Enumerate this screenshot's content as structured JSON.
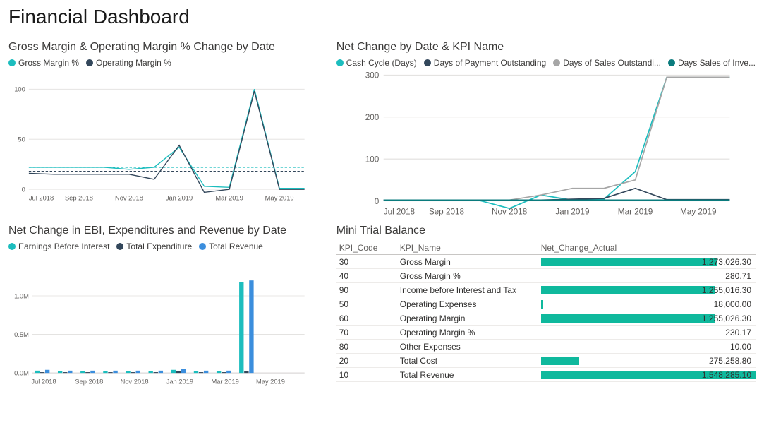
{
  "page_title": "Financial Dashboard",
  "colors": {
    "teal": "#1cbdbe",
    "navy": "#33475b",
    "blue": "#3b8edd",
    "gray": "#a6a6a6",
    "darkteal": "#0a7b7d",
    "grid": "#e1dfdd",
    "axis": "#c8c6c4",
    "barfill": "#0fb99d"
  },
  "chart1": {
    "title": "Gross Margin & Operating Margin % Change by Date",
    "legend": [
      {
        "label": "Gross Margin %",
        "color": "#1cbdbe"
      },
      {
        "label": "Operating Margin %",
        "color": "#33475b"
      }
    ],
    "ylim": [
      0,
      100
    ],
    "yticks": [
      0,
      50,
      100
    ],
    "xlabels": [
      "Jul 2018",
      "Sep 2018",
      "Nov 2018",
      "Jan 2019",
      "Mar 2019",
      "May 2019"
    ],
    "series": [
      {
        "color": "#1cbdbe",
        "values": [
          22,
          22,
          22,
          22,
          20,
          22,
          42,
          3,
          2,
          100,
          1,
          1
        ]
      },
      {
        "color": "#33475b",
        "values": [
          16,
          15,
          15,
          15,
          15,
          10,
          44,
          -3,
          0,
          98,
          0,
          0
        ]
      }
    ],
    "dash_lines": [
      {
        "color": "#1cbdbe",
        "y": 22
      },
      {
        "color": "#33475b",
        "y": 18
      }
    ]
  },
  "chart2": {
    "title": "Net Change by Date & KPI Name",
    "legend": [
      {
        "label": "Cash Cycle (Days)",
        "color": "#1cbdbe"
      },
      {
        "label": "Days of Payment Outstanding",
        "color": "#33475b"
      },
      {
        "label": "Days of Sales Outstandi...",
        "color": "#a6a6a6"
      },
      {
        "label": "Days Sales of Inve...",
        "color": "#0a7b7d"
      }
    ],
    "ylim": [
      0,
      300
    ],
    "yticks": [
      0,
      100,
      200,
      300
    ],
    "xlabels": [
      "Jul 2018",
      "Sep 2018",
      "Nov 2018",
      "Jan 2019",
      "Mar 2019",
      "May 2019"
    ],
    "series": [
      {
        "color": "#1cbdbe",
        "values": [
          2,
          2,
          2,
          2,
          -18,
          14,
          2,
          4,
          70,
          295,
          295,
          295
        ]
      },
      {
        "color": "#33475b",
        "values": [
          2,
          2,
          2,
          2,
          2,
          2,
          4,
          6,
          30,
          3,
          3,
          3
        ]
      },
      {
        "color": "#a6a6a6",
        "values": [
          2,
          2,
          2,
          2,
          2,
          14,
          30,
          30,
          50,
          295,
          295,
          295
        ]
      },
      {
        "color": "#0a7b7d",
        "values": [
          2,
          2,
          2,
          2,
          2,
          2,
          2,
          2,
          2,
          2,
          2,
          2
        ]
      }
    ]
  },
  "chart3": {
    "title": "Net Change in EBI, Expenditures and Revenue by Date",
    "legend": [
      {
        "label": "Earnings Before Interest",
        "color": "#1cbdbe"
      },
      {
        "label": "Total Expenditure",
        "color": "#33475b"
      },
      {
        "label": "Total Revenue",
        "color": "#3b8edd"
      }
    ],
    "ylim": [
      0,
      1.3
    ],
    "yticks": [
      0.0,
      0.5,
      1.0
    ],
    "yticklabels": [
      "0.0M",
      "0.5M",
      "1.0M"
    ],
    "xlabels": [
      "Jul 2018",
      "Sep 2018",
      "Nov 2018",
      "Jan 2019",
      "Mar 2019",
      "May 2019"
    ],
    "groups": [
      [
        0.03,
        0.01,
        0.04
      ],
      [
        0.02,
        0.01,
        0.03
      ],
      [
        0.02,
        0.01,
        0.03
      ],
      [
        0.02,
        0.01,
        0.03
      ],
      [
        0.02,
        0.01,
        0.03
      ],
      [
        0.02,
        0.01,
        0.03
      ],
      [
        0.04,
        0.02,
        0.05
      ],
      [
        0.02,
        0.01,
        0.03
      ],
      [
        0.02,
        0.01,
        0.03
      ],
      [
        1.18,
        0.02,
        1.2
      ],
      [
        0.0,
        0.0,
        0.0
      ],
      [
        0.0,
        0.0,
        0.0
      ]
    ],
    "bar_colors": [
      "#1cbdbe",
      "#33475b",
      "#3b8edd"
    ]
  },
  "table": {
    "title": "Mini Trial Balance",
    "columns": [
      "KPI_Code",
      "KPI_Name",
      "Net_Change_Actual"
    ],
    "max": 1548285.1,
    "rows": [
      {
        "code": "30",
        "name": "Gross Margin",
        "val": 1273026.3,
        "label": "1,273,026.30"
      },
      {
        "code": "40",
        "name": "Gross Margin %",
        "val": 280.71,
        "label": "280.71"
      },
      {
        "code": "90",
        "name": "Income before Interest and Tax",
        "val": 1255016.3,
        "label": "1,255,016.30"
      },
      {
        "code": "50",
        "name": "Operating Expenses",
        "val": 18000.0,
        "label": "18,000.00"
      },
      {
        "code": "60",
        "name": "Operating Margin",
        "val": 1255026.3,
        "label": "1,255,026.30"
      },
      {
        "code": "70",
        "name": "Operating Margin %",
        "val": 230.17,
        "label": "230.17"
      },
      {
        "code": "80",
        "name": "Other Expenses",
        "val": 10.0,
        "label": "10.00"
      },
      {
        "code": "20",
        "name": "Total Cost",
        "val": 275258.8,
        "label": "275,258.80"
      },
      {
        "code": "10",
        "name": "Total Revenue",
        "val": 1548285.1,
        "label": "1,548,285.10"
      }
    ]
  }
}
